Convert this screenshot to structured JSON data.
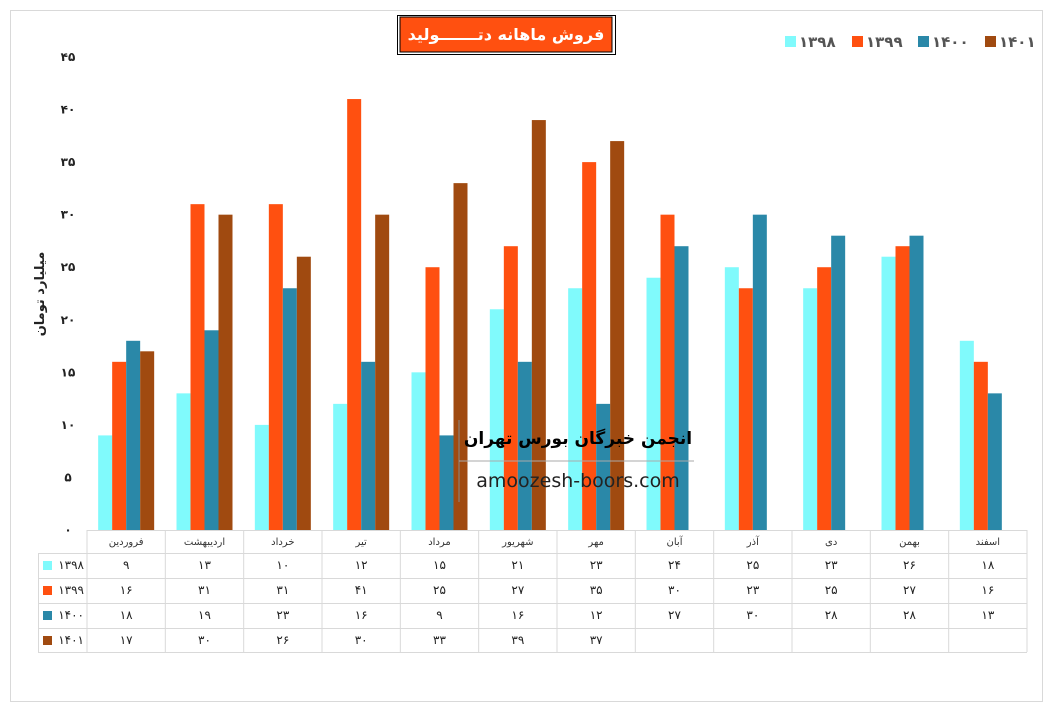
{
  "chart_data": {
    "type": "bar",
    "title": "فروش ماهانه دتـــــــولید",
    "ylabel": "میلیارد تومان",
    "xlabel": "",
    "ylim": [
      0,
      45
    ],
    "yticks": [
      "۰",
      "۵",
      "۱۰",
      "۱۵",
      "۲۰",
      "۲۵",
      "۳۰",
      "۳۵",
      "۴۰",
      "۴۵"
    ],
    "legend_position": "top-right",
    "categories": [
      "فروردین",
      "اردیبهشت",
      "خرداد",
      "تیر",
      "مرداد",
      "شهریور",
      "مهر",
      "آبان",
      "آذر",
      "دی",
      "بهمن",
      "اسفند"
    ],
    "series": [
      {
        "name": "۱۳۹۸",
        "color": "#80FAFC",
        "values": [
          9,
          13,
          10,
          12,
          15,
          21,
          23,
          24,
          25,
          23,
          26,
          18
        ]
      },
      {
        "name": "۱۳۹۹",
        "color": "#FF5010",
        "values": [
          16,
          31,
          31,
          41,
          25,
          27,
          35,
          30,
          23,
          25,
          27,
          16
        ]
      },
      {
        "name": "۱۴۰۰",
        "color": "#2A88A8",
        "values": [
          18,
          19,
          23,
          16,
          9,
          16,
          12,
          27,
          30,
          28,
          28,
          13
        ]
      },
      {
        "name": "۱۴۰۱",
        "color": "#A04A10",
        "values": [
          17,
          30,
          26,
          30,
          33,
          39,
          37,
          null,
          null,
          null,
          null,
          null
        ]
      }
    ],
    "watermark": {
      "title": "انجمن خبرگان بورس تهران",
      "url": "amoozesh-boors.com"
    }
  }
}
